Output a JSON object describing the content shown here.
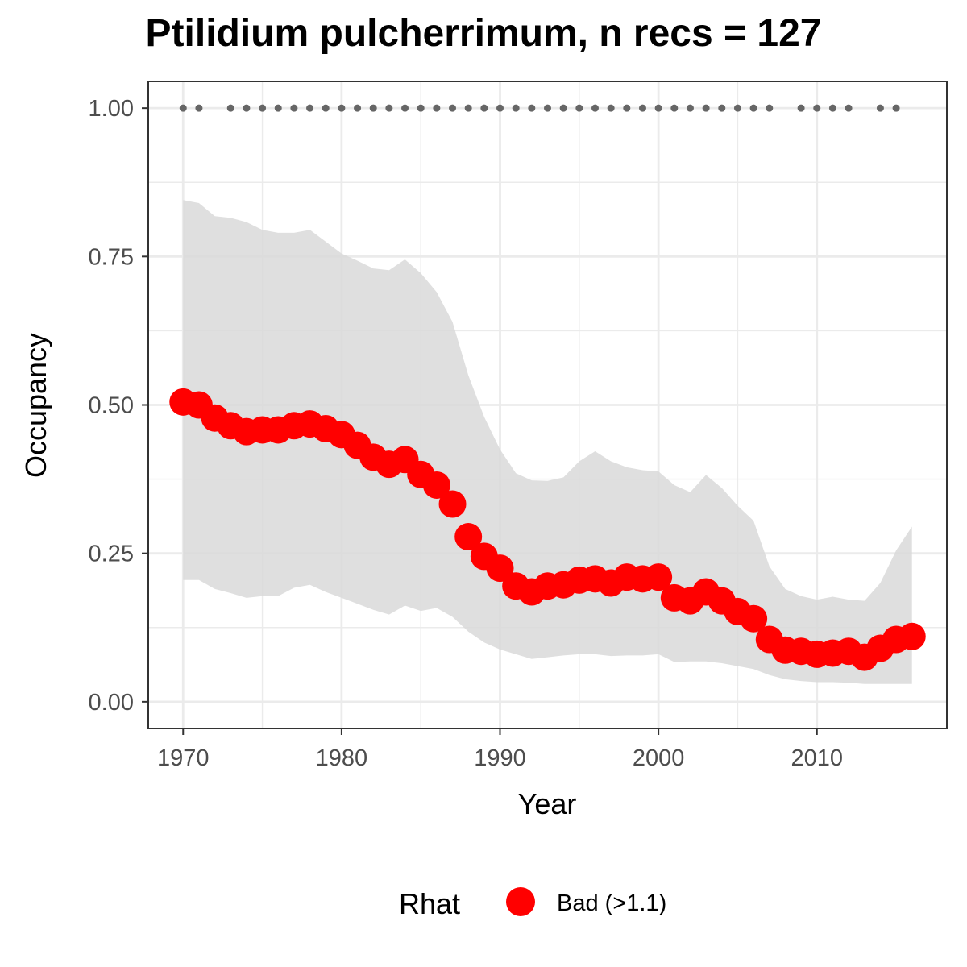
{
  "chart_data": {
    "type": "line",
    "title": "Ptilidium pulcherrimum, n recs = 127",
    "xlabel": "Year",
    "ylabel": "Occupancy",
    "xlim": [
      1967.8,
      2018.2
    ],
    "ylim": [
      -0.045,
      1.045
    ],
    "x_ticks": [
      1970,
      1980,
      1990,
      2000,
      2010
    ],
    "y_ticks": [
      0,
      0.25,
      0.5,
      0.75,
      1.0
    ],
    "x_tick_labels": [
      "1970",
      "1980",
      "1990",
      "2000",
      "2010"
    ],
    "y_tick_labels": [
      "0.00",
      "0.25",
      "0.50",
      "0.75",
      "1.00"
    ],
    "grid": true,
    "legend_position": "bottom",
    "legend": {
      "title": "Rhat",
      "entries": [
        {
          "label": "Bad (>1.1)",
          "color": "#ff0000"
        }
      ]
    },
    "colors": {
      "points": "#ff0000",
      "ribbon": "#d9d9d9",
      "records": "#666666",
      "grid": "#ebebeb",
      "panel_border": "#333333"
    },
    "series": [
      {
        "role": "mean occupancy (points)",
        "x": [
          1970,
          1971,
          1972,
          1973,
          1974,
          1975,
          1976,
          1977,
          1978,
          1979,
          1980,
          1981,
          1982,
          1983,
          1984,
          1985,
          1986,
          1987,
          1988,
          1989,
          1990,
          1991,
          1992,
          1993,
          1994,
          1995,
          1996,
          1997,
          1998,
          1999,
          2000,
          2001,
          2002,
          2003,
          2004,
          2005,
          2006,
          2007,
          2008,
          2009,
          2010,
          2011,
          2012,
          2013,
          2014,
          2015,
          2016
        ],
        "values": [
          0.505,
          0.5,
          0.478,
          0.465,
          0.455,
          0.458,
          0.458,
          0.465,
          0.468,
          0.46,
          0.45,
          0.432,
          0.412,
          0.4,
          0.408,
          0.383,
          0.365,
          0.333,
          0.278,
          0.245,
          0.225,
          0.195,
          0.185,
          0.195,
          0.197,
          0.205,
          0.207,
          0.2,
          0.21,
          0.207,
          0.21,
          0.175,
          0.17,
          0.185,
          0.17,
          0.152,
          0.14,
          0.105,
          0.087,
          0.085,
          0.08,
          0.082,
          0.085,
          0.075,
          0.09,
          0.105,
          0.11
        ]
      },
      {
        "role": "credible interval (ribbon)",
        "x": [
          1970,
          1971,
          1972,
          1973,
          1974,
          1975,
          1976,
          1977,
          1978,
          1979,
          1980,
          1981,
          1982,
          1983,
          1984,
          1985,
          1986,
          1987,
          1988,
          1989,
          1990,
          1991,
          1992,
          1993,
          1994,
          1995,
          1996,
          1997,
          1998,
          1999,
          2000,
          2001,
          2002,
          2003,
          2004,
          2005,
          2006,
          2007,
          2008,
          2009,
          2010,
          2011,
          2012,
          2013,
          2014,
          2015,
          2016
        ],
        "upper": [
          0.845,
          0.84,
          0.818,
          0.815,
          0.808,
          0.795,
          0.79,
          0.79,
          0.795,
          0.775,
          0.755,
          0.743,
          0.73,
          0.727,
          0.745,
          0.722,
          0.69,
          0.64,
          0.55,
          0.48,
          0.425,
          0.385,
          0.373,
          0.372,
          0.378,
          0.405,
          0.422,
          0.405,
          0.395,
          0.39,
          0.388,
          0.365,
          0.353,
          0.382,
          0.36,
          0.33,
          0.305,
          0.228,
          0.19,
          0.178,
          0.172,
          0.177,
          0.172,
          0.17,
          0.2,
          0.255,
          0.295
        ],
        "lower": [
          0.205,
          0.205,
          0.19,
          0.183,
          0.175,
          0.178,
          0.178,
          0.192,
          0.197,
          0.185,
          0.175,
          0.165,
          0.155,
          0.147,
          0.162,
          0.153,
          0.158,
          0.143,
          0.118,
          0.1,
          0.088,
          0.08,
          0.072,
          0.075,
          0.078,
          0.08,
          0.08,
          0.077,
          0.078,
          0.078,
          0.08,
          0.067,
          0.068,
          0.068,
          0.065,
          0.06,
          0.055,
          0.045,
          0.038,
          0.035,
          0.033,
          0.033,
          0.032,
          0.03,
          0.03,
          0.03,
          0.03
        ]
      },
      {
        "role": "years with records",
        "y": 1.0,
        "x": [
          1970,
          1971,
          1973,
          1974,
          1975,
          1976,
          1977,
          1978,
          1979,
          1980,
          1981,
          1982,
          1983,
          1984,
          1985,
          1986,
          1987,
          1988,
          1989,
          1990,
          1991,
          1992,
          1993,
          1994,
          1995,
          1996,
          1997,
          1998,
          1999,
          2000,
          2001,
          2002,
          2003,
          2004,
          2005,
          2006,
          2007,
          2009,
          2010,
          2011,
          2012,
          2014,
          2015
        ]
      }
    ]
  }
}
